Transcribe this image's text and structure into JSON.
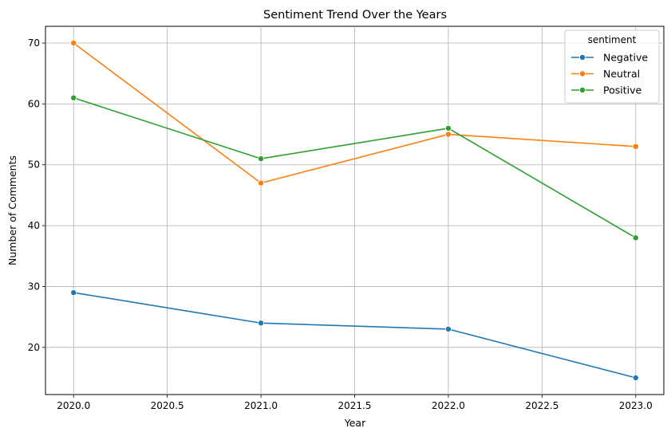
{
  "chart_data": {
    "type": "line",
    "title": "Sentiment Trend Over the Years",
    "xlabel": "Year",
    "ylabel": "Number of Comments",
    "x": [
      2020,
      2021,
      2022,
      2023
    ],
    "xlim": [
      2019.85,
      2023.15
    ],
    "ylim": [
      12.25,
      72.75
    ],
    "x_ticks": [
      2020.0,
      2020.5,
      2021.0,
      2021.5,
      2022.0,
      2022.5,
      2023.0
    ],
    "x_tick_labels": [
      "2020.0",
      "2020.5",
      "2021.0",
      "2021.5",
      "2022.0",
      "2022.5",
      "2023.0"
    ],
    "y_ticks": [
      20,
      30,
      40,
      50,
      60,
      70
    ],
    "y_tick_labels": [
      "20",
      "30",
      "40",
      "50",
      "60",
      "70"
    ],
    "grid": true,
    "legend": {
      "title": "sentiment",
      "placement": "top-right"
    },
    "series": [
      {
        "name": "Negative",
        "color": "#1f77b4",
        "values": [
          29,
          24,
          23,
          15
        ]
      },
      {
        "name": "Neutral",
        "color": "#ff7f0e",
        "values": [
          70,
          47,
          55,
          53
        ]
      },
      {
        "name": "Positive",
        "color": "#2ca02c",
        "values": [
          61,
          51,
          56,
          38
        ]
      }
    ]
  }
}
